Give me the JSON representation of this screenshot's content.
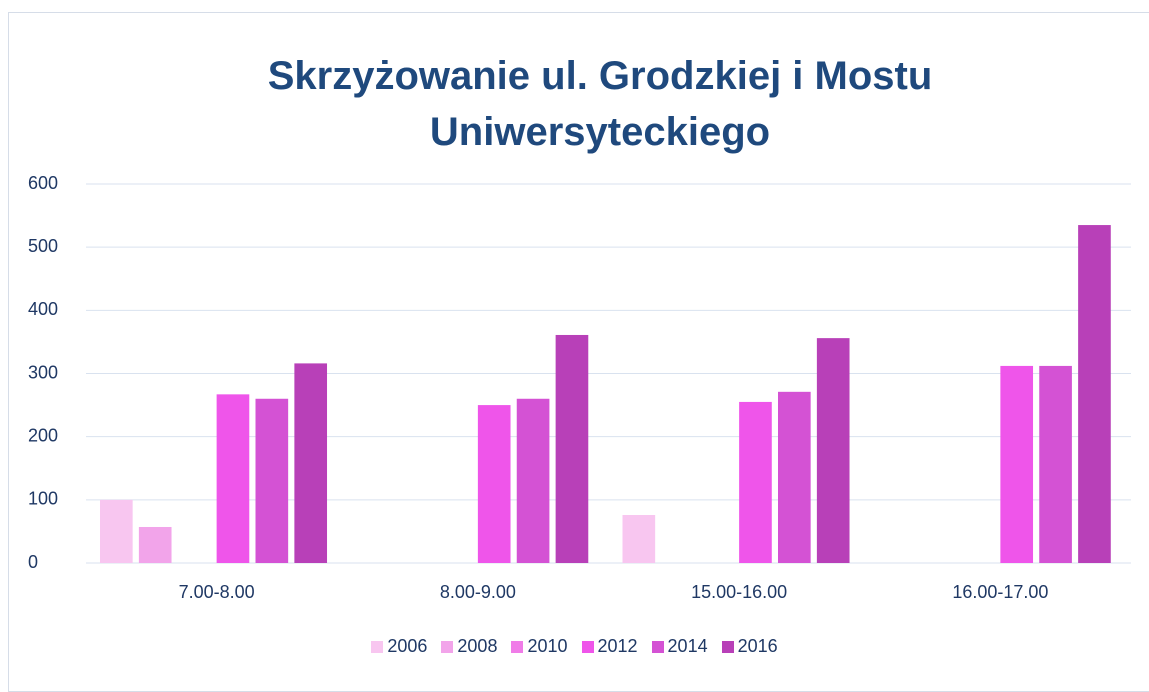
{
  "chart_data": {
    "type": "bar",
    "title": "Skrzyżowanie ul. Grodzkiej i Mostu Uniwersyteckiego",
    "categories": [
      "7.00-8.00",
      "8.00-9.00",
      "15.00-16.00",
      "16.00-17.00"
    ],
    "series": [
      {
        "name": "2006",
        "color": "#f8c6f0",
        "values": [
          100,
          null,
          76,
          null
        ]
      },
      {
        "name": "2008",
        "color": "#f2a4ea",
        "values": [
          57,
          null,
          null,
          null
        ]
      },
      {
        "name": "2010",
        "color": "#f07ce8",
        "values": [
          null,
          null,
          null,
          null
        ]
      },
      {
        "name": "2012",
        "color": "#ef55ea",
        "values": [
          267,
          250,
          255,
          312
        ]
      },
      {
        "name": "2014",
        "color": "#d452d4",
        "values": [
          260,
          260,
          271,
          312
        ]
      },
      {
        "name": "2016",
        "color": "#b840b8",
        "values": [
          316,
          361,
          356,
          535
        ]
      }
    ],
    "ylim": [
      0,
      600
    ],
    "yticks": [
      0,
      100,
      200,
      300,
      400,
      500,
      600
    ],
    "grid": true,
    "legend": "bottom"
  }
}
